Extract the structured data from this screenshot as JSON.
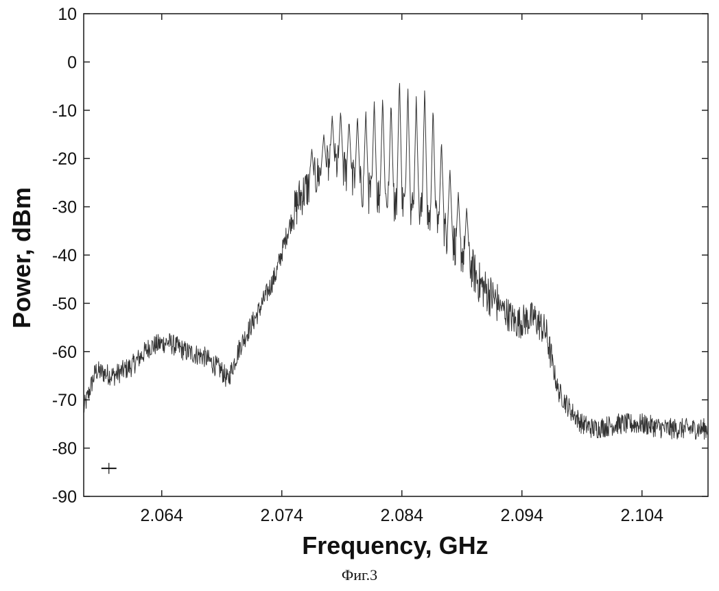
{
  "caption": "Фиг.3",
  "chart_data": {
    "type": "line",
    "title": "",
    "xlabel": "Frequency, GHz",
    "ylabel": "Power, dBm",
    "xlim": [
      2.0575,
      2.1095
    ],
    "ylim": [
      -90,
      10
    ],
    "x_ticks": [
      2.064,
      2.074,
      2.084,
      2.094,
      2.104
    ],
    "x_tick_labels": [
      "2.064",
      "2.074",
      "2.084",
      "2.094",
      "2.104"
    ],
    "y_ticks": [
      10,
      0,
      -10,
      -20,
      -30,
      -40,
      -50,
      -60,
      -70,
      -80,
      -90
    ],
    "y_tick_labels": [
      "10",
      "0",
      "-10",
      "-20",
      "-30",
      "-40",
      "-50",
      "-60",
      "-70",
      "-80",
      "-90"
    ],
    "grid": false,
    "line_color": "#333333",
    "series": [
      {
        "x": [
          2.0575,
          2.0585,
          2.06,
          2.0615,
          2.063,
          2.0645,
          2.066,
          2.0675,
          2.069,
          2.0695,
          2.0705,
          2.072,
          2.0735,
          2.0745,
          2.0755,
          2.0765,
          2.0775,
          2.0785,
          2.0795,
          2.081,
          2.0825,
          2.084,
          2.0855,
          2.087,
          2.0885,
          2.0895,
          2.0905,
          2.092,
          2.0935,
          2.095,
          2.096,
          2.097,
          2.098,
          2.099,
          2.1,
          2.102,
          2.104,
          2.106,
          2.108,
          2.1095
        ],
        "y": [
          -72,
          -64,
          -65,
          -63,
          -59,
          -58,
          -60,
          -61,
          -64,
          -66,
          -59,
          -52,
          -44,
          -35,
          -28,
          -25,
          -22,
          -21,
          -23,
          -27,
          -28,
          -29,
          -31,
          -33,
          -38,
          -41,
          -46,
          -50,
          -54,
          -53,
          -56,
          -68,
          -72,
          -75,
          -76,
          -75,
          -75,
          -76,
          -76,
          -76
        ]
      }
    ],
    "peaks": [
      {
        "x": 2.0765,
        "y": -18
      },
      {
        "x": 2.0775,
        "y": -15
      },
      {
        "x": 2.0782,
        "y": -11
      },
      {
        "x": 2.0789,
        "y": -10
      },
      {
        "x": 2.0796,
        "y": -12
      },
      {
        "x": 2.0803,
        "y": -11
      },
      {
        "x": 2.081,
        "y": -10
      },
      {
        "x": 2.0817,
        "y": -8
      },
      {
        "x": 2.0824,
        "y": -7
      },
      {
        "x": 2.0831,
        "y": -8
      },
      {
        "x": 2.0838,
        "y": -3
      },
      {
        "x": 2.0845,
        "y": -5
      },
      {
        "x": 2.0852,
        "y": -7
      },
      {
        "x": 2.0859,
        "y": -5
      },
      {
        "x": 2.0866,
        "y": -9
      },
      {
        "x": 2.0873,
        "y": -16
      },
      {
        "x": 2.088,
        "y": -22
      },
      {
        "x": 2.0887,
        "y": -27
      },
      {
        "x": 2.0894,
        "y": -30
      }
    ],
    "markers": [
      {
        "x": 2.0596,
        "y": -84.2
      }
    ]
  }
}
